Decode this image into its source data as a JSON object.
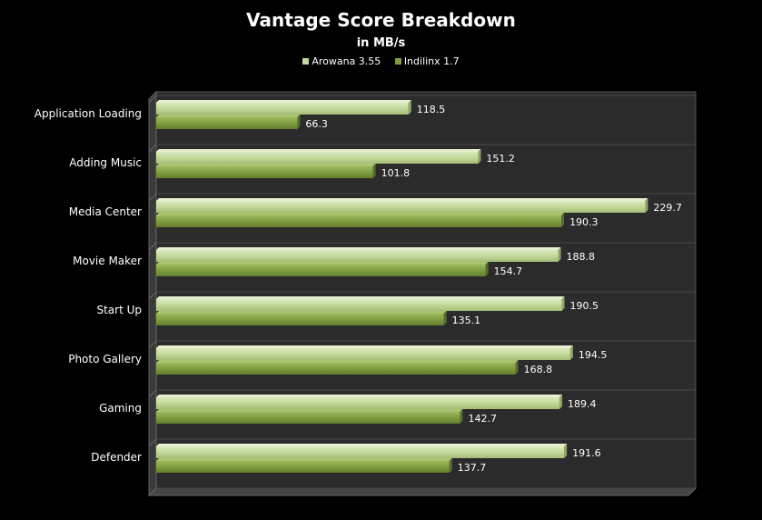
{
  "chart_data": {
    "type": "bar",
    "orientation": "horizontal",
    "title": "Vantage Score Breakdown",
    "subtitle": "in MB/s",
    "categories": [
      "Application Loading",
      "Adding Music",
      "Media Center",
      "Movie Maker",
      "Start Up",
      "Photo Gallery",
      "Gaming",
      "Defender"
    ],
    "series": [
      {
        "name": "Arowana 3.55",
        "color": "#c3d89a",
        "values": [
          118.5,
          151.2,
          229.7,
          188.8,
          190.5,
          194.5,
          189.4,
          191.6
        ]
      },
      {
        "name": "Indilinx 1.7",
        "color": "#7f9e40",
        "values": [
          66.3,
          101.8,
          190.3,
          154.7,
          135.1,
          168.8,
          142.7,
          137.7
        ]
      }
    ],
    "xlim": [
      0,
      250
    ],
    "grid": true,
    "legend_position": "top"
  }
}
